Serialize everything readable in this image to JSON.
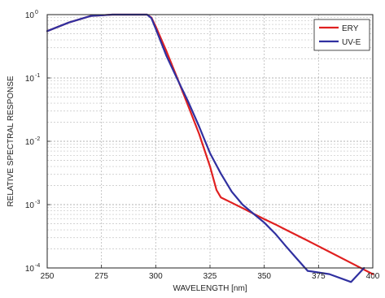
{
  "chart_data": {
    "type": "line",
    "xlabel": "WAVELENGTH [nm]",
    "ylabel": "RELATIVE SPECTRAL RESPONSE",
    "xlim": [
      250,
      400
    ],
    "ylim": [
      0.0001,
      1
    ],
    "yscale": "log",
    "grid": true,
    "legend_position": "top-right",
    "x_ticks": [
      "250",
      "275",
      "300",
      "325",
      "350",
      "375",
      "400"
    ],
    "y_ticks": [
      {
        "base": "10",
        "exp": "-4",
        "value": 0.0001
      },
      {
        "base": "10",
        "exp": "-3",
        "value": 0.001
      },
      {
        "base": "10",
        "exp": "-2",
        "value": 0.01
      },
      {
        "base": "10",
        "exp": "-1",
        "value": 0.1
      },
      {
        "base": "10",
        "exp": "0",
        "value": 1
      }
    ],
    "series": [
      {
        "name": "ERY",
        "color": "#e02020",
        "x": [
          250,
          260,
          270,
          280,
          290,
          296,
          298,
          300,
          305,
          310,
          315,
          320,
          325,
          328,
          330,
          335,
          340,
          345,
          350,
          355,
          360,
          370,
          380,
          390,
          400
        ],
        "y": [
          0.55,
          0.75,
          0.95,
          1.0,
          1.0,
          1.0,
          0.9,
          0.65,
          0.26,
          0.098,
          0.036,
          0.013,
          0.004,
          0.0017,
          0.0013,
          0.00107,
          0.00088,
          0.00072,
          0.00059,
          0.00049,
          0.0004,
          0.00027,
          0.00018,
          0.00012,
          8e-05
        ]
      },
      {
        "name": "UV-E",
        "color": "#3030a0",
        "x": [
          250,
          260,
          270,
          280,
          290,
          296,
          298,
          300,
          305,
          310,
          315,
          320,
          325,
          330,
          335,
          340,
          345,
          350,
          355,
          360,
          365,
          370,
          380,
          390,
          396
        ],
        "y": [
          0.55,
          0.75,
          0.95,
          1.0,
          1.0,
          1.0,
          0.88,
          0.6,
          0.22,
          0.095,
          0.042,
          0.017,
          0.0065,
          0.0031,
          0.0016,
          0.001,
          0.00072,
          0.00052,
          0.00035,
          0.00022,
          0.00014,
          9e-05,
          8e-05,
          6e-05,
          0.0001
        ]
      }
    ]
  }
}
